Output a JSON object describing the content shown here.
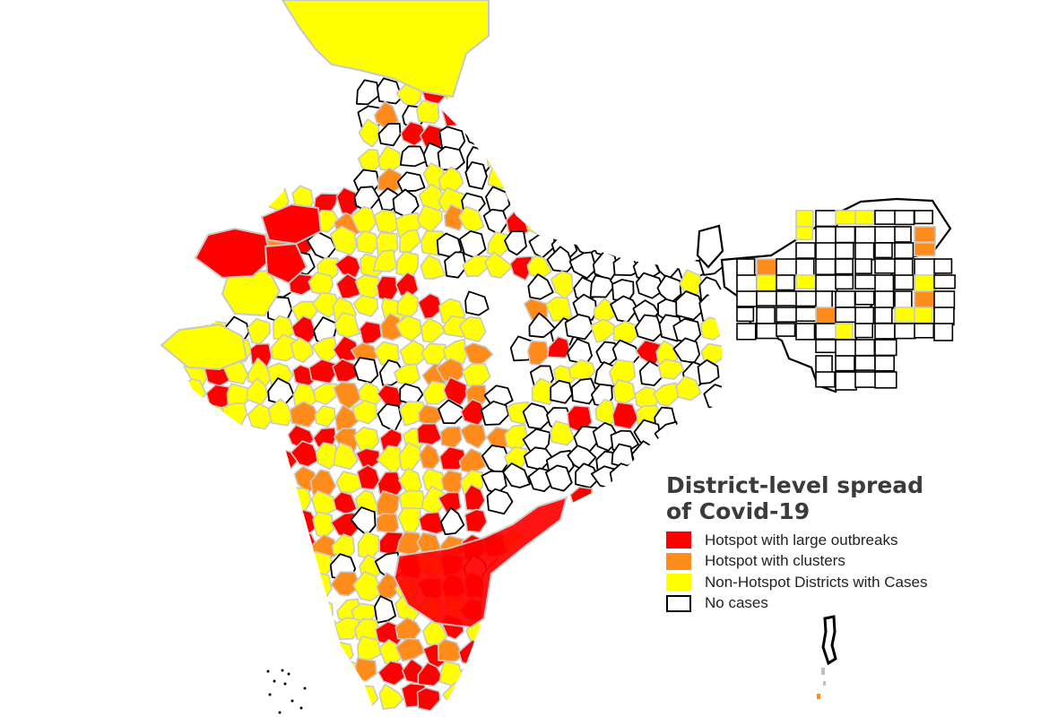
{
  "map": {
    "colors": {
      "hotspot_large": "#ff0000",
      "hotspot_clusters": "#ff8c1a",
      "non_hotspot_cases": "#ffff00",
      "no_cases": "#ffffff",
      "district_border_cases": "#c8c8c8",
      "district_border_no_cases": "#000000"
    }
  },
  "legend": {
    "title_line1": "District-level spread",
    "title_line2": "of Covid-19",
    "items": [
      {
        "label": "Hotspot with large outbreaks",
        "color": "#ff0000"
      },
      {
        "label": "Hotspot with clusters",
        "color": "#ff8c1a"
      },
      {
        "label": "Non-Hotspot Districts with Cases",
        "color": "#ffff00"
      },
      {
        "label": "No cases",
        "color": "#ffffff"
      }
    ]
  }
}
